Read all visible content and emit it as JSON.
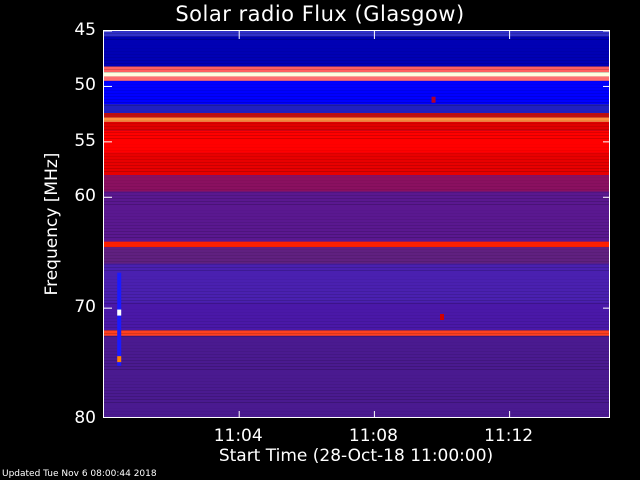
{
  "chart_data": {
    "type": "heatmap",
    "title": "Solar radio Flux (Glasgow)",
    "xlabel": "Start Time (28-Oct-18 11:00:00)",
    "ylabel": "Frequency [MHz]",
    "x_unit": "minutes after 11:00:00",
    "xlim": [
      0,
      15
    ],
    "ylim": [
      45,
      80
    ],
    "y_inverted": true,
    "x_ticks": [
      {
        "value": 4,
        "label": "11:04"
      },
      {
        "value": 8,
        "label": "11:08"
      },
      {
        "value": 12,
        "label": "11:12"
      }
    ],
    "y_ticks": [
      {
        "value": 45,
        "label": "45"
      },
      {
        "value": 50,
        "label": "50"
      },
      {
        "value": 55,
        "label": "55"
      },
      {
        "value": 60,
        "label": "60"
      },
      {
        "value": 70,
        "label": "70"
      },
      {
        "value": 80,
        "label": "80"
      }
    ],
    "frequency_bands": [
      {
        "from": 45.0,
        "to": 45.5,
        "color": "#3030c8"
      },
      {
        "from": 45.5,
        "to": 48.2,
        "color": "#0000b4"
      },
      {
        "from": 48.2,
        "to": 48.7,
        "color": "#ff6060"
      },
      {
        "from": 48.7,
        "to": 49.1,
        "color": "#ffffe0"
      },
      {
        "from": 49.1,
        "to": 49.5,
        "color": "#ff7070"
      },
      {
        "from": 49.5,
        "to": 51.6,
        "color": "#0000ff"
      },
      {
        "from": 51.6,
        "to": 52.4,
        "color": "#2020c0"
      },
      {
        "from": 52.4,
        "to": 52.8,
        "color": "#c01010"
      },
      {
        "from": 52.8,
        "to": 53.2,
        "color": "#ff9040"
      },
      {
        "from": 53.2,
        "to": 54.0,
        "color": "#e00000"
      },
      {
        "from": 54.0,
        "to": 56.0,
        "color": "#ff0000"
      },
      {
        "from": 56.0,
        "to": 58.0,
        "color": "#e80000"
      },
      {
        "from": 58.0,
        "to": 59.5,
        "color": "#8a1060"
      },
      {
        "from": 59.5,
        "to": 64.0,
        "color": "#5a1890"
      },
      {
        "from": 64.0,
        "to": 64.5,
        "color": "#ff2000"
      },
      {
        "from": 64.5,
        "to": 66.0,
        "color": "#602080"
      },
      {
        "from": 66.0,
        "to": 69.5,
        "color": "#4a20b0"
      },
      {
        "from": 69.5,
        "to": 72.0,
        "color": "#4a18a8"
      },
      {
        "from": 72.0,
        "to": 72.5,
        "color": "#ff4020"
      },
      {
        "from": 72.5,
        "to": 80.0,
        "color": "#4a1a90"
      }
    ],
    "features": [
      {
        "type": "vertical_burst",
        "x": 0.45,
        "from": 66.8,
        "to": 75.2,
        "color": "#1a1aff"
      },
      {
        "type": "point",
        "x": 0.45,
        "y": 70.4,
        "color": "#ffffff"
      },
      {
        "type": "point",
        "x": 0.45,
        "y": 74.6,
        "color": "#ff8000"
      },
      {
        "type": "point",
        "x": 10.0,
        "y": 70.8,
        "color": "#d00000"
      },
      {
        "type": "point",
        "x": 9.75,
        "y": 51.2,
        "color": "#b00030"
      }
    ]
  },
  "footer": {
    "updated": "Updated Tue Nov  6 08:00:44 2018"
  }
}
